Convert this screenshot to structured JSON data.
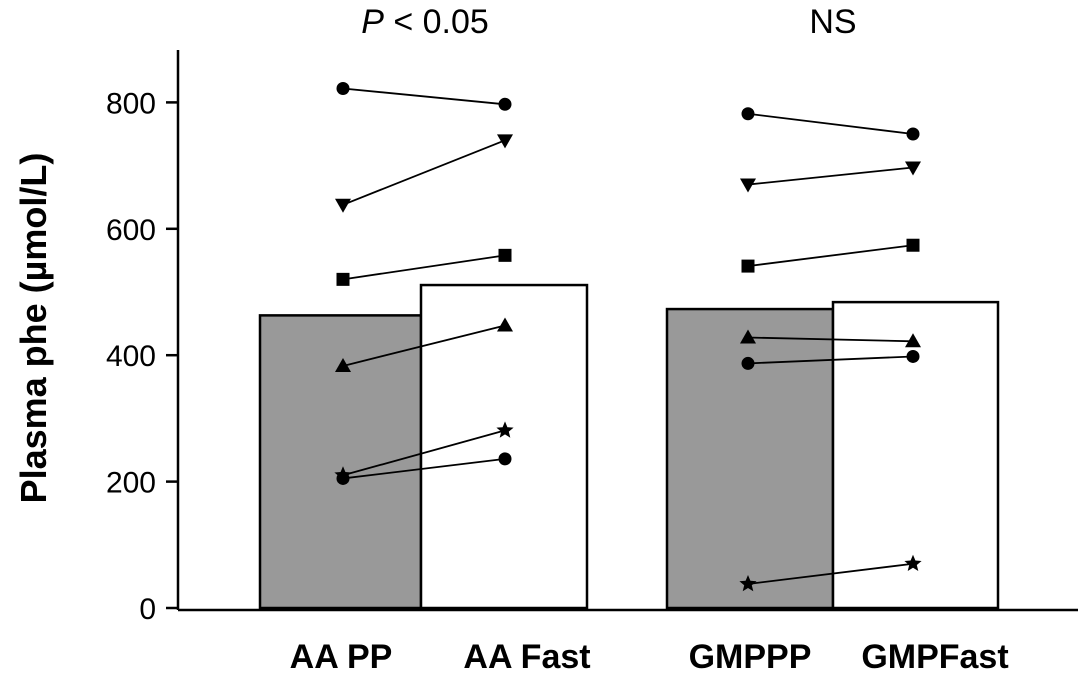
{
  "chart_data": {
    "type": "bar",
    "ylabel": "Plasma phe (µmol/L)",
    "ylim": [
      0,
      880
    ],
    "yticks": [
      0,
      200,
      400,
      600,
      800
    ],
    "categories": [
      "AA PP",
      "AA Fast",
      "GMPPP",
      "GMPFast"
    ],
    "bar_fills": [
      "#999999",
      "#ffffff",
      "#999999",
      "#ffffff"
    ],
    "groups": [
      {
        "annotation": "P < 0.05",
        "annotation_italic": "P",
        "annotation_rest": " < 0.05",
        "bars": [
          {
            "category": "AA PP",
            "value": 463
          },
          {
            "category": "AA Fast",
            "value": 511
          }
        ],
        "subjects": [
          {
            "marker": "circle",
            "values": [
              822,
              797
            ]
          },
          {
            "marker": "triangle-down",
            "values": [
              638,
              740
            ]
          },
          {
            "marker": "square",
            "values": [
              520,
              558
            ]
          },
          {
            "marker": "triangle-up",
            "values": [
              383,
              447
            ]
          },
          {
            "marker": "star",
            "values": [
              210,
              281
            ]
          },
          {
            "marker": "circle",
            "values": [
              205,
              236
            ]
          }
        ]
      },
      {
        "annotation": "NS",
        "annotation_italic": "",
        "annotation_rest": "NS",
        "bars": [
          {
            "category": "GMPPP",
            "value": 473
          },
          {
            "category": "GMPFast",
            "value": 484
          }
        ],
        "subjects": [
          {
            "marker": "circle",
            "values": [
              782,
              750
            ]
          },
          {
            "marker": "triangle-down",
            "values": [
              670,
              697
            ]
          },
          {
            "marker": "square",
            "values": [
              541,
              574
            ]
          },
          {
            "marker": "triangle-up",
            "values": [
              428,
              422
            ]
          },
          {
            "marker": "circle",
            "values": [
              387,
              398
            ]
          },
          {
            "marker": "star",
            "values": [
              38,
              70
            ]
          }
        ]
      }
    ]
  }
}
